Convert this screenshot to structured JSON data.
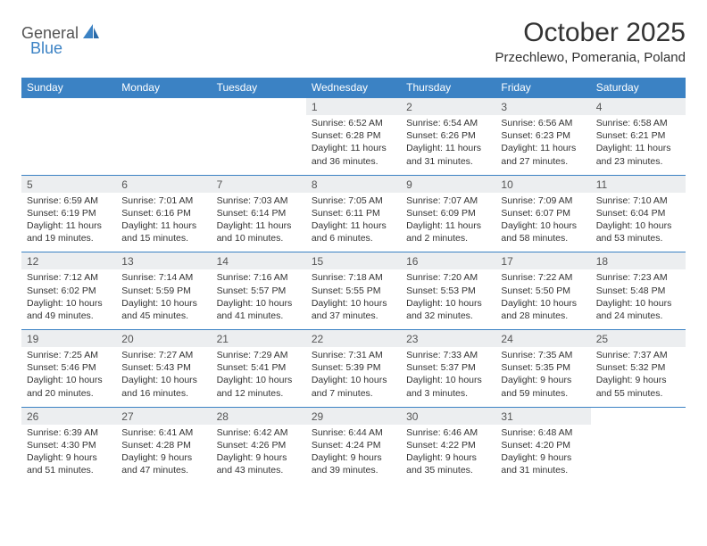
{
  "brand": {
    "name_a": "General",
    "name_b": "Blue"
  },
  "title": "October 2025",
  "location": "Przechlewo, Pomerania, Poland",
  "colors": {
    "header_bg": "#3b82c4",
    "daynum_bg": "#eceef0",
    "border": "#3b82c4",
    "text": "#333333"
  },
  "days_of_week": [
    "Sunday",
    "Monday",
    "Tuesday",
    "Wednesday",
    "Thursday",
    "Friday",
    "Saturday"
  ],
  "weeks": [
    [
      {
        "num": "",
        "lines": []
      },
      {
        "num": "",
        "lines": []
      },
      {
        "num": "",
        "lines": []
      },
      {
        "num": "1",
        "lines": [
          "Sunrise: 6:52 AM",
          "Sunset: 6:28 PM",
          "Daylight: 11 hours and 36 minutes."
        ]
      },
      {
        "num": "2",
        "lines": [
          "Sunrise: 6:54 AM",
          "Sunset: 6:26 PM",
          "Daylight: 11 hours and 31 minutes."
        ]
      },
      {
        "num": "3",
        "lines": [
          "Sunrise: 6:56 AM",
          "Sunset: 6:23 PM",
          "Daylight: 11 hours and 27 minutes."
        ]
      },
      {
        "num": "4",
        "lines": [
          "Sunrise: 6:58 AM",
          "Sunset: 6:21 PM",
          "Daylight: 11 hours and 23 minutes."
        ]
      }
    ],
    [
      {
        "num": "5",
        "lines": [
          "Sunrise: 6:59 AM",
          "Sunset: 6:19 PM",
          "Daylight: 11 hours and 19 minutes."
        ]
      },
      {
        "num": "6",
        "lines": [
          "Sunrise: 7:01 AM",
          "Sunset: 6:16 PM",
          "Daylight: 11 hours and 15 minutes."
        ]
      },
      {
        "num": "7",
        "lines": [
          "Sunrise: 7:03 AM",
          "Sunset: 6:14 PM",
          "Daylight: 11 hours and 10 minutes."
        ]
      },
      {
        "num": "8",
        "lines": [
          "Sunrise: 7:05 AM",
          "Sunset: 6:11 PM",
          "Daylight: 11 hours and 6 minutes."
        ]
      },
      {
        "num": "9",
        "lines": [
          "Sunrise: 7:07 AM",
          "Sunset: 6:09 PM",
          "Daylight: 11 hours and 2 minutes."
        ]
      },
      {
        "num": "10",
        "lines": [
          "Sunrise: 7:09 AM",
          "Sunset: 6:07 PM",
          "Daylight: 10 hours and 58 minutes."
        ]
      },
      {
        "num": "11",
        "lines": [
          "Sunrise: 7:10 AM",
          "Sunset: 6:04 PM",
          "Daylight: 10 hours and 53 minutes."
        ]
      }
    ],
    [
      {
        "num": "12",
        "lines": [
          "Sunrise: 7:12 AM",
          "Sunset: 6:02 PM",
          "Daylight: 10 hours and 49 minutes."
        ]
      },
      {
        "num": "13",
        "lines": [
          "Sunrise: 7:14 AM",
          "Sunset: 5:59 PM",
          "Daylight: 10 hours and 45 minutes."
        ]
      },
      {
        "num": "14",
        "lines": [
          "Sunrise: 7:16 AM",
          "Sunset: 5:57 PM",
          "Daylight: 10 hours and 41 minutes."
        ]
      },
      {
        "num": "15",
        "lines": [
          "Sunrise: 7:18 AM",
          "Sunset: 5:55 PM",
          "Daylight: 10 hours and 37 minutes."
        ]
      },
      {
        "num": "16",
        "lines": [
          "Sunrise: 7:20 AM",
          "Sunset: 5:53 PM",
          "Daylight: 10 hours and 32 minutes."
        ]
      },
      {
        "num": "17",
        "lines": [
          "Sunrise: 7:22 AM",
          "Sunset: 5:50 PM",
          "Daylight: 10 hours and 28 minutes."
        ]
      },
      {
        "num": "18",
        "lines": [
          "Sunrise: 7:23 AM",
          "Sunset: 5:48 PM",
          "Daylight: 10 hours and 24 minutes."
        ]
      }
    ],
    [
      {
        "num": "19",
        "lines": [
          "Sunrise: 7:25 AM",
          "Sunset: 5:46 PM",
          "Daylight: 10 hours and 20 minutes."
        ]
      },
      {
        "num": "20",
        "lines": [
          "Sunrise: 7:27 AM",
          "Sunset: 5:43 PM",
          "Daylight: 10 hours and 16 minutes."
        ]
      },
      {
        "num": "21",
        "lines": [
          "Sunrise: 7:29 AM",
          "Sunset: 5:41 PM",
          "Daylight: 10 hours and 12 minutes."
        ]
      },
      {
        "num": "22",
        "lines": [
          "Sunrise: 7:31 AM",
          "Sunset: 5:39 PM",
          "Daylight: 10 hours and 7 minutes."
        ]
      },
      {
        "num": "23",
        "lines": [
          "Sunrise: 7:33 AM",
          "Sunset: 5:37 PM",
          "Daylight: 10 hours and 3 minutes."
        ]
      },
      {
        "num": "24",
        "lines": [
          "Sunrise: 7:35 AM",
          "Sunset: 5:35 PM",
          "Daylight: 9 hours and 59 minutes."
        ]
      },
      {
        "num": "25",
        "lines": [
          "Sunrise: 7:37 AM",
          "Sunset: 5:32 PM",
          "Daylight: 9 hours and 55 minutes."
        ]
      }
    ],
    [
      {
        "num": "26",
        "lines": [
          "Sunrise: 6:39 AM",
          "Sunset: 4:30 PM",
          "Daylight: 9 hours and 51 minutes."
        ]
      },
      {
        "num": "27",
        "lines": [
          "Sunrise: 6:41 AM",
          "Sunset: 4:28 PM",
          "Daylight: 9 hours and 47 minutes."
        ]
      },
      {
        "num": "28",
        "lines": [
          "Sunrise: 6:42 AM",
          "Sunset: 4:26 PM",
          "Daylight: 9 hours and 43 minutes."
        ]
      },
      {
        "num": "29",
        "lines": [
          "Sunrise: 6:44 AM",
          "Sunset: 4:24 PM",
          "Daylight: 9 hours and 39 minutes."
        ]
      },
      {
        "num": "30",
        "lines": [
          "Sunrise: 6:46 AM",
          "Sunset: 4:22 PM",
          "Daylight: 9 hours and 35 minutes."
        ]
      },
      {
        "num": "31",
        "lines": [
          "Sunrise: 6:48 AM",
          "Sunset: 4:20 PM",
          "Daylight: 9 hours and 31 minutes."
        ]
      },
      {
        "num": "",
        "lines": []
      }
    ]
  ]
}
